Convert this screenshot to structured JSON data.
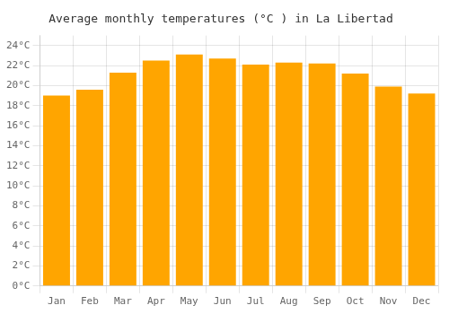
{
  "chart_data": {
    "type": "bar",
    "title": "Average monthly temperatures (°C ) in La Libertad",
    "categories": [
      "Jan",
      "Feb",
      "Mar",
      "Apr",
      "May",
      "Jun",
      "Jul",
      "Aug",
      "Sep",
      "Oct",
      "Nov",
      "Dec"
    ],
    "values": [
      19.0,
      19.6,
      21.3,
      22.5,
      23.1,
      22.7,
      22.1,
      22.3,
      22.2,
      21.2,
      19.9,
      19.2
    ],
    "color": "#FFA500",
    "ylim": [
      0,
      25
    ],
    "yticks": [
      {
        "value": 0,
        "label": "0°C"
      },
      {
        "value": 2,
        "label": "2°C"
      },
      {
        "value": 4,
        "label": "4°C"
      },
      {
        "value": 6,
        "label": "6°C"
      },
      {
        "value": 8,
        "label": "8°C"
      },
      {
        "value": 10,
        "label": "10°C"
      },
      {
        "value": 12,
        "label": "12°C"
      },
      {
        "value": 14,
        "label": "14°C"
      },
      {
        "value": 16,
        "label": "16°C"
      },
      {
        "value": 18,
        "label": "18°C"
      },
      {
        "value": 20,
        "label": "20°C"
      },
      {
        "value": 22,
        "label": "22°C"
      },
      {
        "value": 24,
        "label": "24°C"
      }
    ],
    "grid": true
  }
}
